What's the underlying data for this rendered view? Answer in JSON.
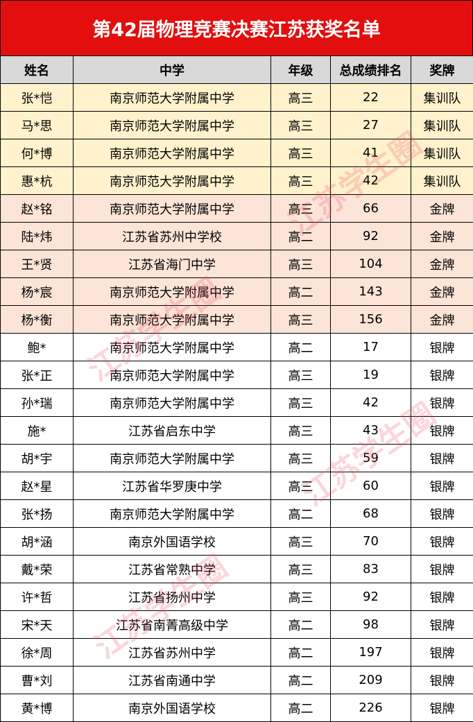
{
  "title": "第42届物理竞赛决赛江苏获奖名单",
  "columns": [
    "姓名",
    "中学",
    "年级",
    "总成绩排名",
    "奖牌"
  ],
  "colors": {
    "title_bg": "#e30e0e",
    "header_bg": "#d9d9d9",
    "training_team_bg": "#fff2cc",
    "gold_bg": "#fce4d6"
  },
  "watermark": "江苏学生圈",
  "rows": [
    [
      "张*恺",
      "南京师范大学附属中学",
      "高三",
      "22",
      "集训队"
    ],
    [
      "马*思",
      "南京师范大学附属中学",
      "高三",
      "27",
      "集训队"
    ],
    [
      "何*博",
      "南京师范大学附属中学",
      "高三",
      "41",
      "集训队"
    ],
    [
      "惠*杭",
      "南京师范大学附属中学",
      "高三",
      "42",
      "集训队"
    ],
    [
      "赵*铭",
      "南京师范大学附属中学",
      "高三",
      "66",
      "金牌"
    ],
    [
      "陆*炜",
      "江苏省苏州中学校",
      "高二",
      "92",
      "金牌"
    ],
    [
      "王*贤",
      "江苏省海门中学",
      "高三",
      "104",
      "金牌"
    ],
    [
      "杨*宸",
      "南京师范大学附属中学",
      "高二",
      "143",
      "金牌"
    ],
    [
      "杨*衡",
      "南京师范大学附属中学",
      "高三",
      "156",
      "金牌"
    ],
    [
      "鲍*",
      "南京师范大学附属中学",
      "高二",
      "17",
      "银牌"
    ],
    [
      "张*正",
      "南京师范大学附属中学",
      "高三",
      "19",
      "银牌"
    ],
    [
      "孙*瑞",
      "南京师范大学附属中学",
      "高三",
      "42",
      "银牌"
    ],
    [
      "施*",
      "江苏省启东中学",
      "高三",
      "43",
      "银牌"
    ],
    [
      "胡*宇",
      "南京师范大学附属中学",
      "高三",
      "59",
      "银牌"
    ],
    [
      "赵*星",
      "江苏省华罗庚中学",
      "高三",
      "60",
      "银牌"
    ],
    [
      "张*扬",
      "南京师范大学附属中学",
      "高二",
      "68",
      "银牌"
    ],
    [
      "胡*涵",
      "南京外国语学校",
      "高三",
      "70",
      "银牌"
    ],
    [
      "戴*荣",
      "江苏省常熟中学",
      "高三",
      "83",
      "银牌"
    ],
    [
      "许*哲",
      "江苏省扬州中学",
      "高三",
      "92",
      "银牌"
    ],
    [
      "宋*天",
      "江苏省南菁高级中学",
      "高二",
      "98",
      "银牌"
    ],
    [
      "徐*周",
      "江苏省苏州中学",
      "高二",
      "197",
      "银牌"
    ],
    [
      "曹*刘",
      "江苏省南通中学",
      "高二",
      "209",
      "银牌"
    ],
    [
      "黄*博",
      "南京外国语学校",
      "高二",
      "226",
      "银牌"
    ]
  ]
}
